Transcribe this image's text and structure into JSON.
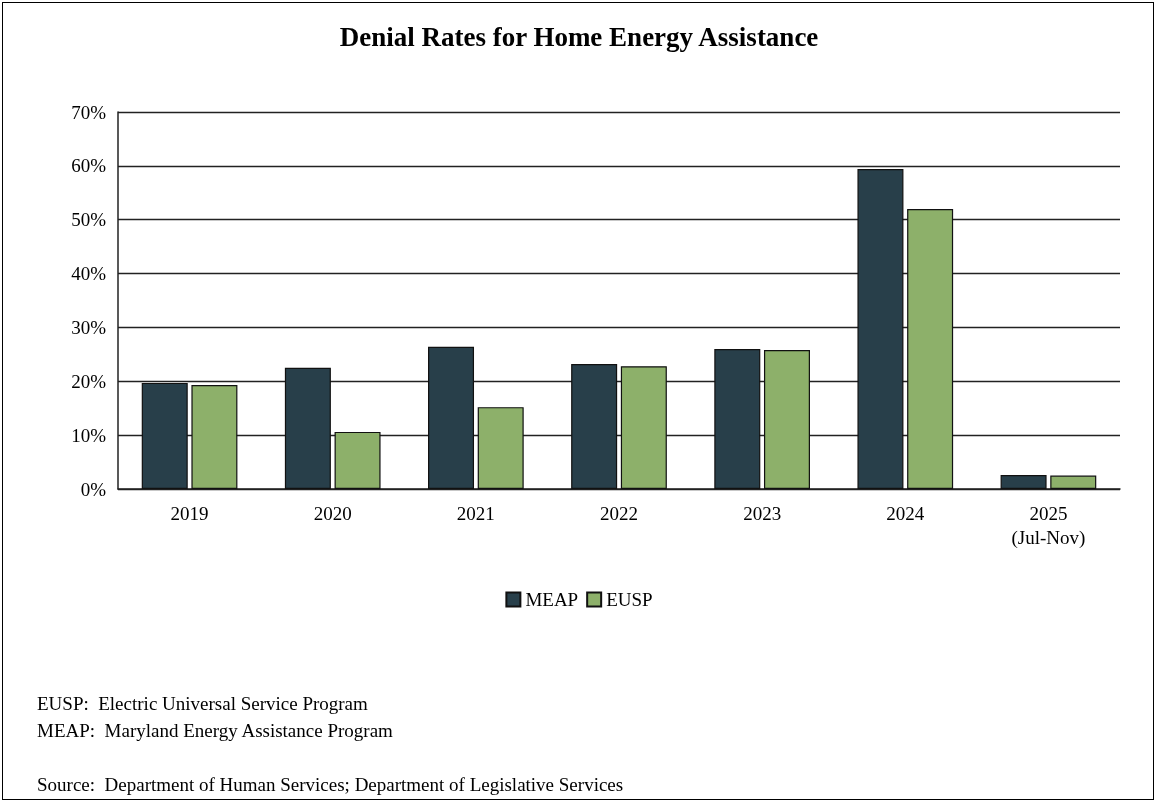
{
  "chart_data": {
    "type": "bar",
    "title": "Denial Rates for Home Energy Assistance",
    "categories": [
      "2019",
      "2020",
      "2021",
      "2022",
      "2023",
      "2024",
      "2025\n(Jul-Nov)"
    ],
    "series": [
      {
        "name": "MEAP",
        "color": "#283f4a",
        "values": [
          19.7,
          22.5,
          26.4,
          23.2,
          26.0,
          59.4,
          2.6
        ]
      },
      {
        "name": "EUSP",
        "color": "#8db06a",
        "values": [
          19.3,
          10.6,
          15.2,
          22.8,
          25.8,
          52.0,
          2.5
        ]
      }
    ],
    "ylim": [
      0,
      70
    ],
    "yticks": [
      {
        "value": 0,
        "label": "0%"
      },
      {
        "value": 10,
        "label": "10%"
      },
      {
        "value": 20,
        "label": "20%"
      },
      {
        "value": 30,
        "label": "30%"
      },
      {
        "value": 40,
        "label": "40%"
      },
      {
        "value": 50,
        "label": "50%"
      },
      {
        "value": 60,
        "label": "60%"
      },
      {
        "value": 70,
        "label": "70%"
      }
    ],
    "grid": "y",
    "legend": "bottom",
    "annotations": [
      "EUSP:  Electric Universal Service Program",
      "MEAP:  Maryland Energy Assistance Program",
      "Source:  Department of Human Services; Department of Legislative Services"
    ]
  }
}
